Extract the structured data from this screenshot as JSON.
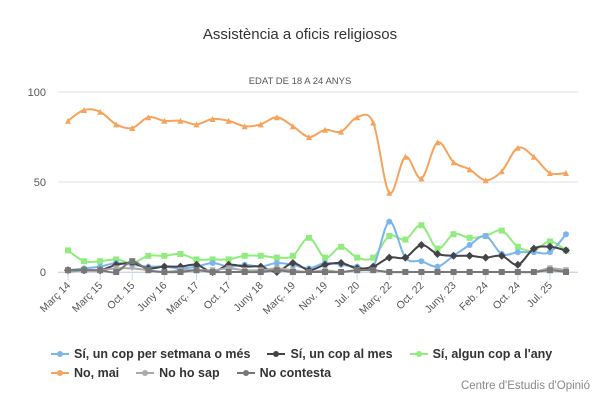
{
  "chart_data": {
    "type": "line",
    "title": "Assistència a oficis religiosos",
    "subtitle": "EDAT DE 18 A 24 ANYS",
    "xlabel": "",
    "ylabel": "",
    "ylim": [
      0,
      100
    ],
    "yticks": [
      "0",
      "50",
      "100"
    ],
    "x_tick_labels": [
      "Març 14",
      "Març 15",
      "Oct. 15",
      "Juny 16",
      "Març. 17",
      "Oct. 17",
      "Juny 18",
      "Març. 19",
      "Nov. 19",
      "Jul. 20",
      "Març. 22",
      "Oct. 22",
      "Juny. 23",
      "Feb. 24",
      "Oct. 24",
      "Jul. 25"
    ],
    "x_tick_every": 2,
    "grid": true,
    "legend_position": "bottom-left",
    "series": [
      {
        "name": "Sí, un cop per setmana o més",
        "color": "#7cb5ec",
        "marker": "circle",
        "values": [
          1,
          2,
          3,
          5,
          4,
          3,
          3,
          2,
          3,
          5,
          3,
          4,
          3,
          5,
          4,
          2,
          5,
          4,
          3,
          3,
          28,
          8,
          6,
          3,
          9,
          15,
          20,
          10,
          11,
          11,
          11,
          21
        ]
      },
      {
        "name": "Sí, un cop al mes",
        "color": "#434348",
        "marker": "diamond",
        "values": [
          1,
          1,
          1,
          4,
          5,
          2,
          3,
          3,
          4,
          0,
          4,
          3,
          3,
          0,
          5,
          1,
          4,
          5,
          2,
          3,
          8,
          8,
          15,
          10,
          9,
          9,
          8,
          9,
          4,
          13,
          14,
          12
        ]
      },
      {
        "name": "Sí, algun cop a l'any",
        "color": "#90ed7d",
        "marker": "square",
        "values": [
          12,
          6,
          6,
          7,
          5,
          9,
          9,
          10,
          7,
          7,
          7,
          9,
          9,
          8,
          9,
          19,
          8,
          14,
          8,
          8,
          20,
          18,
          26,
          13,
          21,
          19,
          20,
          23,
          14,
          12,
          17,
          12
        ]
      },
      {
        "name": "No, mai",
        "color": "#f7a35c",
        "marker": "triangle",
        "values": [
          84,
          90,
          89,
          82,
          80,
          86,
          84,
          84,
          82,
          85,
          84,
          81,
          82,
          86,
          81,
          75,
          79,
          78,
          86,
          83,
          44,
          64,
          52,
          72,
          61,
          57,
          51,
          56,
          69,
          64,
          55,
          55
        ]
      },
      {
        "name": "No ho sap",
        "color": "#aaaaaa",
        "marker": "triangle-down",
        "values": [
          0,
          1,
          1,
          2,
          2,
          1,
          0,
          1,
          1,
          1,
          2,
          1,
          1,
          2,
          1,
          0,
          1,
          0,
          1,
          1,
          0,
          0,
          0,
          0,
          0,
          0,
          0,
          0,
          0,
          0,
          2,
          1
        ]
      },
      {
        "name": "No contesta",
        "color": "#777777",
        "marker": "square",
        "values": [
          1,
          1,
          1,
          0,
          6,
          1,
          0,
          0,
          1,
          0,
          0,
          0,
          0,
          1,
          0,
          0,
          0,
          0,
          1,
          1,
          0,
          0,
          0,
          0,
          0,
          0,
          0,
          0,
          0,
          0,
          1,
          0
        ]
      }
    ]
  },
  "credits": "Centre d'Estudis d'Opinió"
}
